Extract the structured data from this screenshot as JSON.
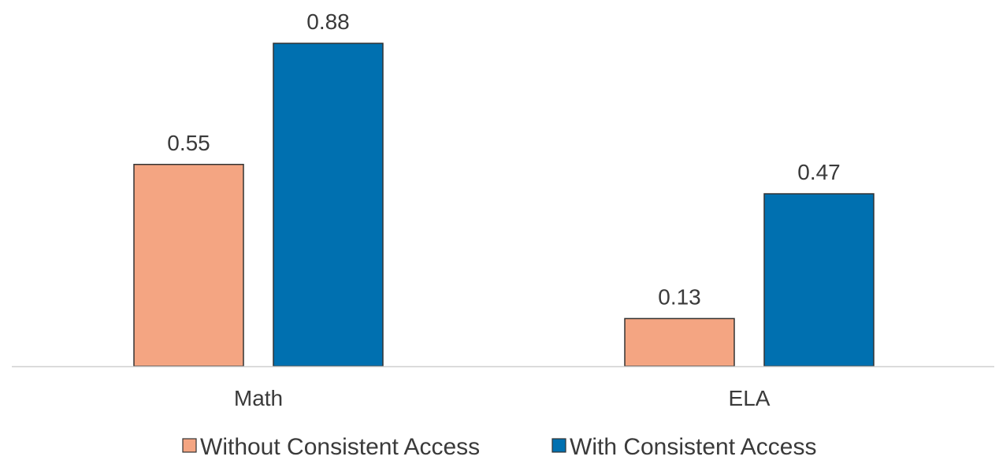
{
  "chart_data": {
    "type": "bar",
    "categories": [
      "Math",
      "ELA"
    ],
    "series": [
      {
        "name": "Without Consistent Access",
        "values": [
          0.55,
          0.13
        ],
        "color": "#F4A582"
      },
      {
        "name": "With Consistent Access",
        "values": [
          0.88,
          0.47
        ],
        "color": "#0070B0"
      }
    ],
    "ylim": [
      0,
      0.88
    ],
    "data_labels": true,
    "grid": false,
    "legend_position": "bottom",
    "bar_outline_color": "#333333",
    "axis_line_color": "#d0d0d0"
  }
}
